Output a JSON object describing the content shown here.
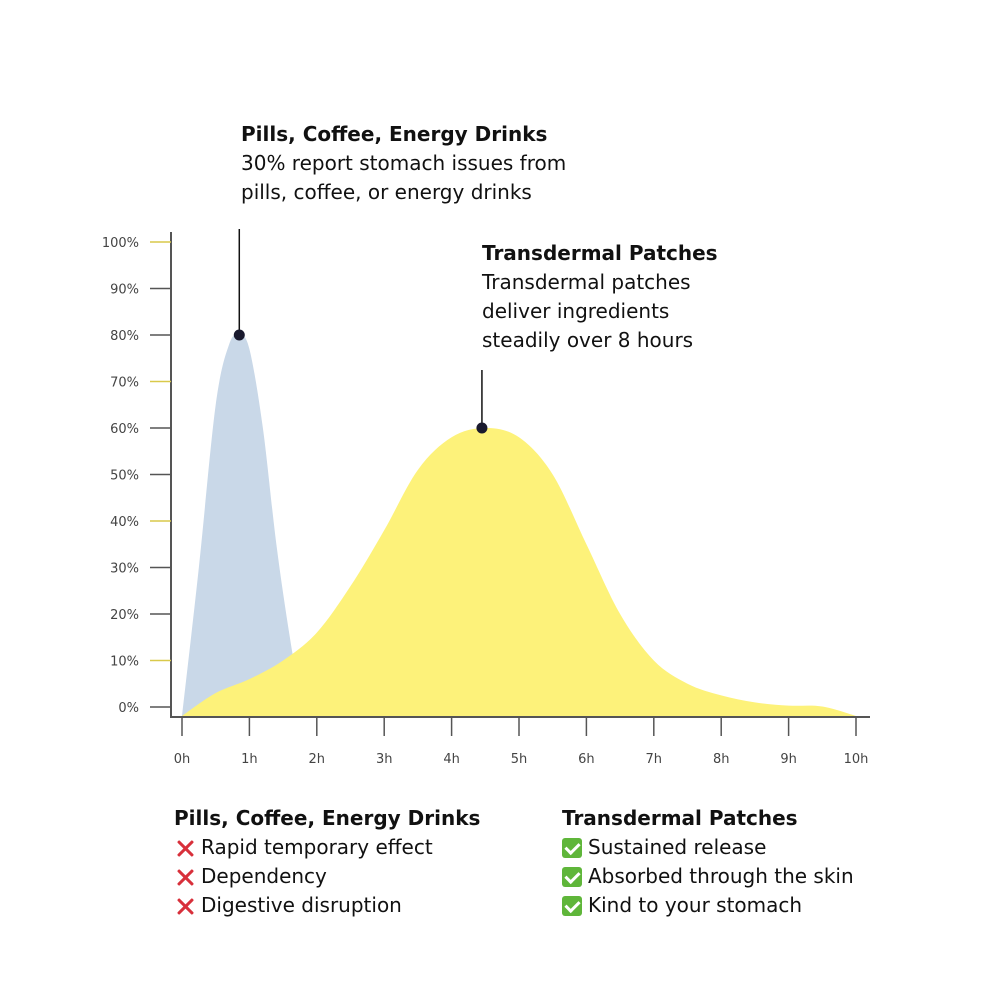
{
  "annotations": {
    "pills": {
      "title": "Pills, Coffee, Energy Drinks",
      "line1": "30% report stomach issues from",
      "line2": "pills, coffee, or energy drinks"
    },
    "patch": {
      "title": "Transdermal Patches",
      "line1": "Transdermal patches",
      "line2": "deliver ingredients",
      "line3": "steadily over 8 hours"
    }
  },
  "chart_data": {
    "type": "area",
    "x_ticks": [
      "0h",
      "1h",
      "2h",
      "3h",
      "4h",
      "5h",
      "6h",
      "7h",
      "8h",
      "9h",
      "10h"
    ],
    "y_ticks": [
      "0%",
      "10%",
      "20%",
      "30%",
      "40%",
      "50%",
      "60%",
      "70%",
      "80%",
      "90%",
      "100%"
    ],
    "xlim": [
      0,
      10
    ],
    "ylim": [
      0,
      100
    ],
    "grid": false,
    "series": [
      {
        "name": "Pills, Coffee, Energy Drinks",
        "color": "#c9d8e8",
        "x": [
          0,
          0.25,
          0.5,
          0.7,
          0.85,
          1.0,
          1.2,
          1.4,
          1.6,
          1.8
        ],
        "y": [
          1,
          30,
          65,
          78,
          80,
          77,
          60,
          35,
          15,
          2
        ],
        "marker": {
          "x": 0.85,
          "y": 80
        }
      },
      {
        "name": "Transdermal Patches",
        "color": "#fdf27a",
        "x": [
          0,
          0.5,
          1,
          1.5,
          2,
          2.5,
          3,
          3.5,
          4,
          4.5,
          5,
          5.5,
          6,
          6.5,
          7,
          7.5,
          8,
          8.5,
          9,
          9.5,
          10
        ],
        "y": [
          0,
          3,
          6,
          10,
          16,
          26,
          38,
          51,
          58,
          60,
          58,
          50,
          35,
          20,
          10,
          5,
          2.5,
          1,
          0.3,
          0.1,
          0
        ],
        "marker": {
          "x": 4.45,
          "y": 60
        }
      }
    ]
  },
  "legend": {
    "pills": {
      "title": "Pills, Coffee, Energy Drinks",
      "items": [
        "Rapid temporary effect",
        "Dependency",
        "Digestive disruption"
      ],
      "icon": "cross-mark-icon"
    },
    "patch": {
      "title": "Transdermal Patches",
      "items": [
        "Sustained release",
        "Absorbed through the skin",
        "Kind to your stomach"
      ],
      "icon": "check-mark-icon"
    }
  }
}
